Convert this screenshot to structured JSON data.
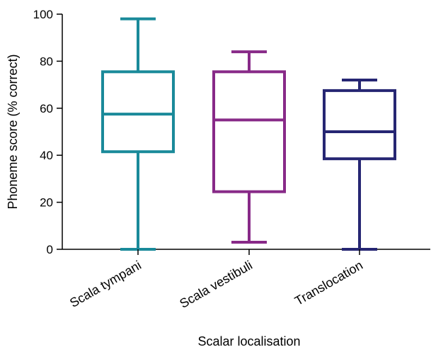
{
  "chart_data": {
    "type": "box",
    "xlabel": "Scalar localisation",
    "ylabel": "Phoneme score (% correct)",
    "ylim": [
      0,
      100
    ],
    "yticks": [
      0,
      20,
      40,
      60,
      80,
      100
    ],
    "grid": false,
    "series": [
      {
        "name": "Scala tympani",
        "color": "#1a8a9a",
        "min": 0,
        "q1": 41.5,
        "median": 57.5,
        "q3": 75.5,
        "max": 98
      },
      {
        "name": "Scala vestibuli",
        "color": "#882a88",
        "min": 3,
        "q1": 24.5,
        "median": 55,
        "q3": 75.5,
        "max": 84
      },
      {
        "name": "Translocation",
        "color": "#262673",
        "min": 0,
        "q1": 38.5,
        "median": 50,
        "q3": 67.5,
        "max": 72
      }
    ]
  }
}
